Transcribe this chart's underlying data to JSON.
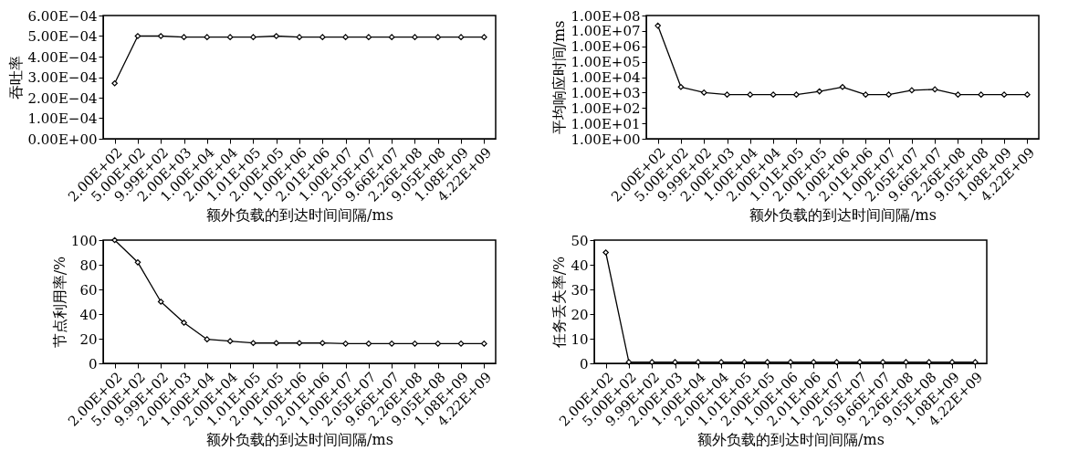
{
  "chart_data": [
    {
      "type": "line",
      "xlabel": "额外负载的到达时间间隔/ms",
      "ylabel": "吞吐率",
      "color": "#000000",
      "marker": "diamond",
      "grid": false,
      "categories": [
        "2.00E+02",
        "5.00E+02",
        "9.99E+02",
        "2.00E+03",
        "1.00E+04",
        "2.00E+04",
        "1.01E+05",
        "2.00E+05",
        "1.00E+06",
        "2.01E+06",
        "1.00E+07",
        "2.05E+07",
        "9.66E+07",
        "2.26E+08",
        "9.05E+08",
        "1.08E+09",
        "4.22E+09"
      ],
      "values": [
        0.00027,
        0.0005,
        0.0005,
        0.000495,
        0.000495,
        0.000495,
        0.000495,
        0.0005,
        0.000495,
        0.000495,
        0.000495,
        0.000495,
        0.000495,
        0.000495,
        0.000495,
        0.000495,
        0.000495
      ],
      "ylim": [
        0,
        0.0006
      ],
      "yticks": [
        {
          "value": 0,
          "label": "0.00E+00"
        },
        {
          "value": 0.0001,
          "label": "1.00E−04"
        },
        {
          "value": 0.0002,
          "label": "2.00E−04"
        },
        {
          "value": 0.0003,
          "label": "3.00E−04"
        },
        {
          "value": 0.0004,
          "label": "4.00E−04"
        },
        {
          "value": 0.0005,
          "label": "5.00E−04"
        },
        {
          "value": 0.0006,
          "label": "6.00E−04"
        }
      ]
    },
    {
      "type": "line",
      "xlabel": "额外负载的到达时间间隔/ms",
      "ylabel": "平均响应时间/ms",
      "color": "#000000",
      "marker": "diamond",
      "grid": false,
      "log": "y",
      "categories": [
        "2.00E+02",
        "5.00E+02",
        "9.99E+02",
        "2.00E+03",
        "1.00E+04",
        "2.00E+04",
        "1.01E+05",
        "2.00E+05",
        "1.00E+06",
        "2.01E+06",
        "1.00E+07",
        "2.05E+07",
        "9.66E+07",
        "2.26E+08",
        "9.05E+08",
        "1.08E+09",
        "4.22E+09"
      ],
      "values": [
        22000000,
        2300,
        1000,
        730,
        730,
        730,
        730,
        1200,
        2300,
        730,
        730,
        1400,
        1600,
        730,
        730,
        730,
        730
      ],
      "ylim": [
        1,
        100000000
      ],
      "yticks": [
        {
          "value": 1,
          "label": "1.00E+00"
        },
        {
          "value": 10,
          "label": "1.00E+01"
        },
        {
          "value": 100,
          "label": "1.00E+02"
        },
        {
          "value": 1000,
          "label": "1.00E+03"
        },
        {
          "value": 10000,
          "label": "1.00E+04"
        },
        {
          "value": 100000,
          "label": "1.00E+05"
        },
        {
          "value": 1000000,
          "label": "1.00E+06"
        },
        {
          "value": 10000000,
          "label": "1.00E+07"
        },
        {
          "value": 100000000,
          "label": "1.00E+08"
        }
      ]
    },
    {
      "type": "line",
      "xlabel": "额外负载的到达时间间隔/ms",
      "ylabel": "节点利用率/%",
      "color": "#000000",
      "marker": "diamond",
      "grid": false,
      "categories": [
        "2.00E+02",
        "5.00E+02",
        "9.99E+02",
        "2.00E+03",
        "1.00E+04",
        "2.00E+04",
        "1.01E+05",
        "2.00E+05",
        "1.00E+06",
        "2.01E+06",
        "1.00E+07",
        "2.05E+07",
        "9.66E+07",
        "2.26E+08",
        "9.05E+08",
        "1.08E+09",
        "4.22E+09"
      ],
      "values": [
        100,
        82,
        50,
        33,
        19.5,
        18,
        16.5,
        16.5,
        16.5,
        16.5,
        16,
        16,
        16,
        16,
        16,
        16,
        16
      ],
      "ylim": [
        0,
        100
      ],
      "yticks": [
        0,
        20,
        40,
        60,
        80,
        100
      ]
    },
    {
      "type": "line",
      "xlabel": "额外负载的到达时间间隔/ms",
      "ylabel": "任务丢失率/%",
      "color": "#000000",
      "marker": "diamond",
      "grid": false,
      "categories": [
        "2.00E+02",
        "5.00E+02",
        "9.99E+02",
        "2.00E+03",
        "1.00E+04",
        "2.00E+04",
        "1.01E+05",
        "2.00E+05",
        "1.00E+06",
        "2.01E+06",
        "1.00E+07",
        "2.05E+07",
        "9.66E+07",
        "2.26E+08",
        "9.05E+08",
        "1.08E+09",
        "4.22E+09"
      ],
      "values": [
        45,
        0.5,
        0.5,
        0.5,
        0.5,
        0.5,
        0.5,
        0.5,
        0.5,
        0.5,
        0.5,
        0.5,
        0.5,
        0.5,
        0.5,
        0.5,
        0.5
      ],
      "ylim": [
        0,
        50
      ],
      "yticks": [
        0,
        10,
        20,
        30,
        40,
        50
      ]
    }
  ]
}
